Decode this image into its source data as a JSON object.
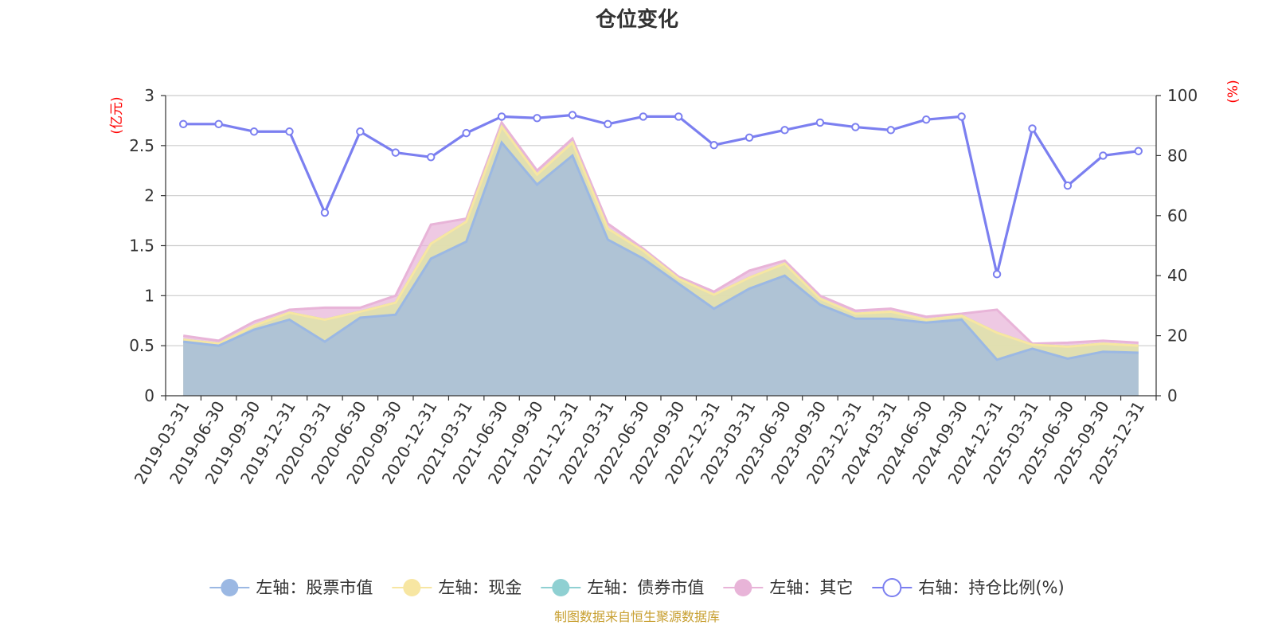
{
  "chart_data": {
    "type": "area",
    "title": "仓位变化",
    "left_axis": {
      "unit": "(亿元)",
      "ylim": [
        0,
        3
      ],
      "ticks": [
        "0",
        "0.5",
        "1",
        "1.5",
        "2",
        "2.5",
        "3"
      ]
    },
    "right_axis": {
      "unit": "(%)",
      "ylim": [
        0,
        100
      ],
      "ticks": [
        "0",
        "20",
        "40",
        "60",
        "80",
        "100"
      ]
    },
    "categories": [
      "2019-03-31",
      "2019-06-30",
      "2019-09-30",
      "2019-12-31",
      "2020-03-31",
      "2020-06-30",
      "2020-09-30",
      "2020-12-31",
      "2021-03-31",
      "2021-06-30",
      "2021-09-30",
      "2021-12-31",
      "2022-03-31",
      "2022-06-30",
      "2022-09-30",
      "2022-12-31",
      "2023-03-31",
      "2023-06-30",
      "2023-09-30",
      "2023-12-31",
      "2024-03-31",
      "2024-06-30",
      "2024-09-30",
      "2024-12-31",
      "2025-03-31",
      "2025-06-30",
      "2025-09-30",
      "2025-12-31"
    ],
    "series": [
      {
        "name": "左轴：股票市值",
        "axis": "left",
        "kind": "area",
        "color": "#9bb8e3",
        "values": [
          0.54,
          0.5,
          0.66,
          0.76,
          0.54,
          0.78,
          0.81,
          1.37,
          1.54,
          2.53,
          2.11,
          2.4,
          1.56,
          1.37,
          1.12,
          0.87,
          1.07,
          1.2,
          0.91,
          0.77,
          0.77,
          0.73,
          0.76,
          0.36,
          0.47,
          0.37,
          0.44,
          0.43
        ]
      },
      {
        "name": "左轴：现金",
        "axis": "left",
        "kind": "area",
        "color": "#f7e6a2",
        "values": [
          0.02,
          0.02,
          0.04,
          0.07,
          0.22,
          0.06,
          0.12,
          0.15,
          0.2,
          0.16,
          0.1,
          0.13,
          0.11,
          0.08,
          0.05,
          0.14,
          0.11,
          0.12,
          0.06,
          0.05,
          0.07,
          0.03,
          0.04,
          0.27,
          0.04,
          0.12,
          0.08,
          0.07
        ]
      },
      {
        "name": "左轴：债券市值",
        "axis": "left",
        "kind": "area",
        "color": "#8fd0d2",
        "values": [
          0,
          0,
          0,
          0,
          0,
          0,
          0,
          0,
          0,
          0,
          0,
          0,
          0,
          0,
          0,
          0,
          0,
          0,
          0,
          0,
          0,
          0,
          0,
          0,
          0,
          0,
          0,
          0
        ]
      },
      {
        "name": "左轴：其它",
        "axis": "left",
        "kind": "area",
        "color": "#e8b4d8",
        "values": [
          0.04,
          0.03,
          0.04,
          0.03,
          0.12,
          0.04,
          0.07,
          0.19,
          0.03,
          0.04,
          0.04,
          0.04,
          0.05,
          0.02,
          0.02,
          0.03,
          0.07,
          0.03,
          0.03,
          0.03,
          0.03,
          0.03,
          0.02,
          0.23,
          0.01,
          0.04,
          0.03,
          0.03
        ]
      },
      {
        "name": "右轴：持仓比例(%)",
        "axis": "right",
        "kind": "line",
        "color": "#7b7ff0",
        "values": [
          90.5,
          90.5,
          88,
          88,
          61,
          88,
          81,
          79.5,
          87.5,
          93,
          92.5,
          93.5,
          90.5,
          93,
          93,
          83.5,
          86,
          88.5,
          91,
          89.5,
          88.5,
          92,
          93,
          40.5,
          89,
          70,
          80,
          81.5
        ]
      }
    ],
    "grid": true,
    "legend_position": "bottom-center",
    "source_note": "制图数据来自恒生聚源数据库"
  }
}
